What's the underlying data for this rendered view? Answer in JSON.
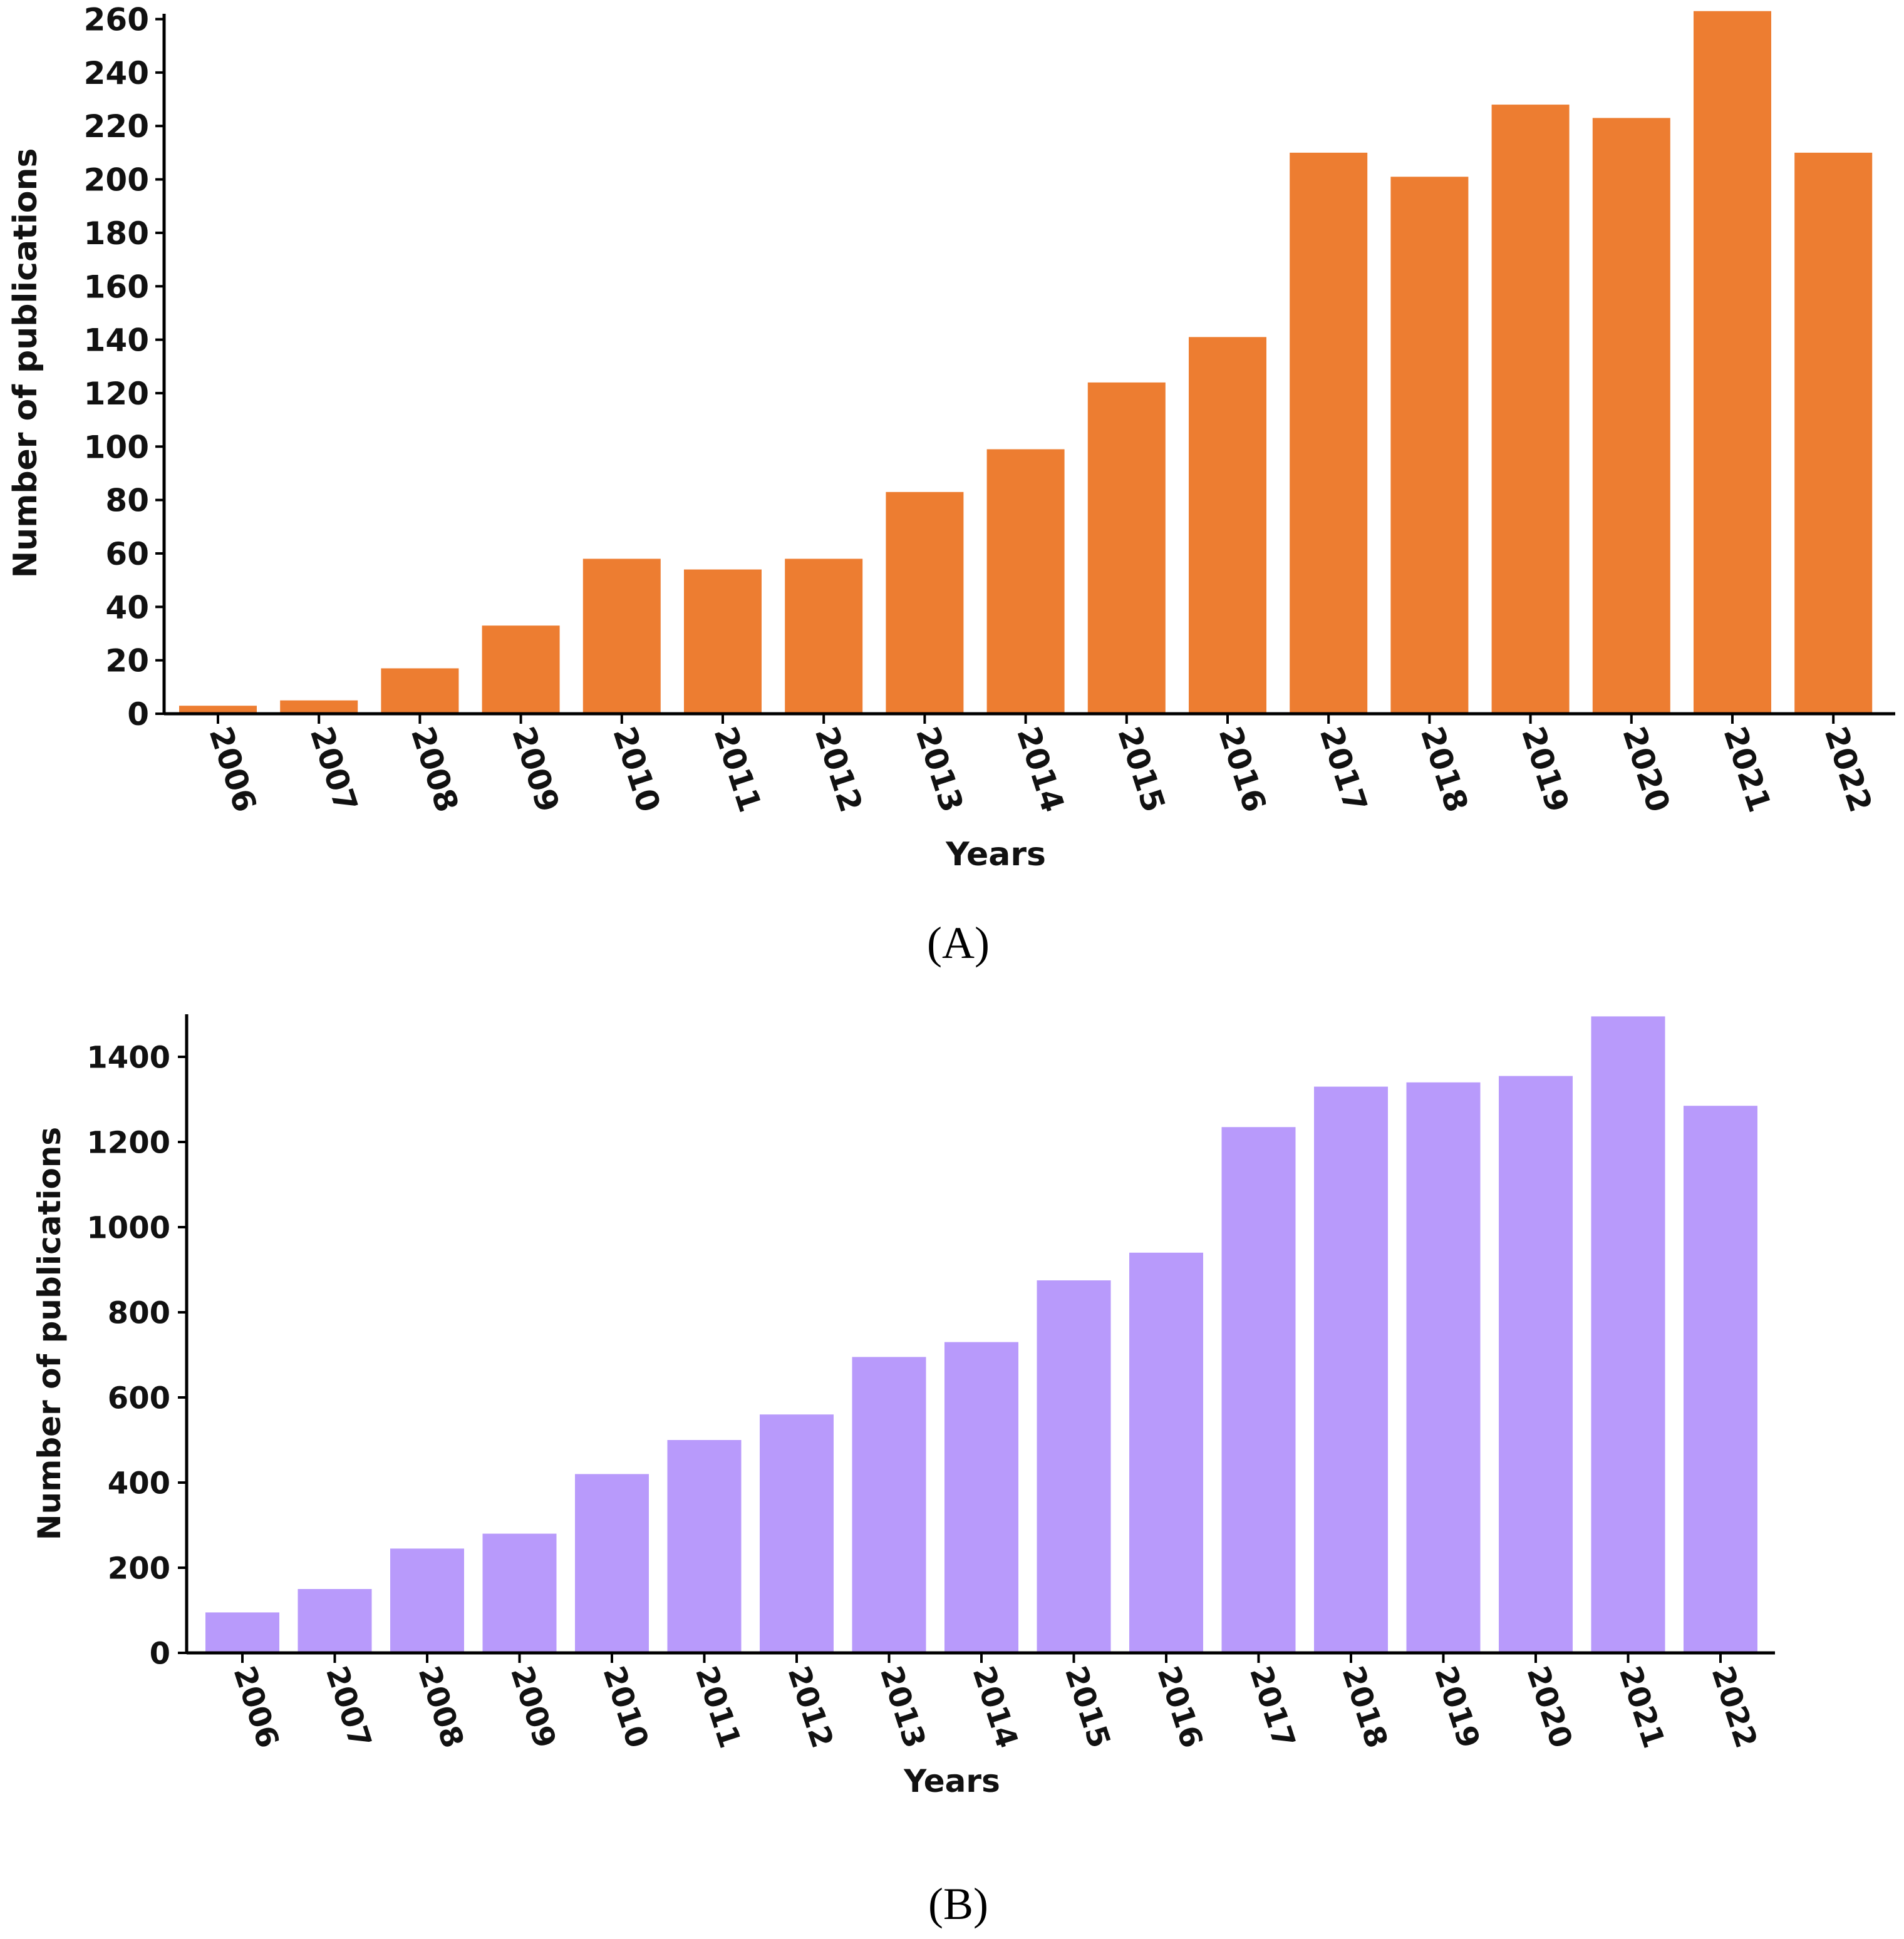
{
  "colors": {
    "panel_a_bar": "#ED7D31",
    "panel_b_bar": "#B89AFB",
    "axis": "#000000"
  },
  "chart_data": [
    {
      "type": "bar",
      "panel": "A",
      "panel_label": "(A)",
      "xlabel": "Years",
      "ylabel": "Number of publications",
      "ylim": [
        0,
        262
      ],
      "yticks": [
        0,
        20,
        40,
        60,
        80,
        100,
        120,
        140,
        160,
        180,
        200,
        220,
        240,
        260
      ],
      "categories": [
        "2006",
        "2007",
        "2008",
        "2009",
        "2010",
        "2011",
        "2012",
        "2013",
        "2014",
        "2015",
        "2016",
        "2017",
        "2018",
        "2019",
        "2020",
        "2021",
        "2022"
      ],
      "values": [
        3,
        5,
        17,
        33,
        58,
        54,
        58,
        83,
        99,
        124,
        141,
        210,
        201,
        228,
        223,
        263,
        210
      ]
    },
    {
      "type": "bar",
      "panel": "B",
      "panel_label": "(B)",
      "xlabel": "Years",
      "ylabel": "Number of publications",
      "ylim": [
        0,
        1500
      ],
      "yticks": [
        0,
        200,
        400,
        600,
        800,
        1000,
        1200,
        1400
      ],
      "categories": [
        "2006",
        "2007",
        "2008",
        "2009",
        "2010",
        "2011",
        "2012",
        "2013",
        "2014",
        "2015",
        "2016",
        "2017",
        "2018",
        "2019",
        "2020",
        "2021",
        "2022"
      ],
      "values": [
        95,
        150,
        245,
        280,
        420,
        500,
        560,
        695,
        730,
        875,
        940,
        1235,
        1330,
        1340,
        1355,
        1495,
        1285
      ]
    }
  ]
}
